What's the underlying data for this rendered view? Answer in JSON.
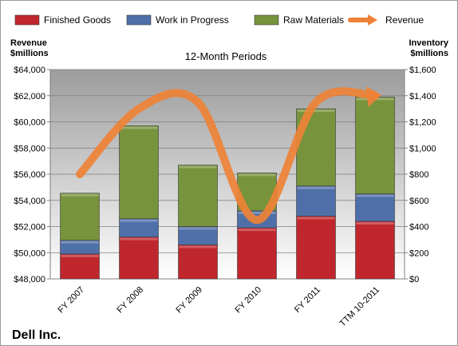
{
  "chart_data": {
    "type": "bar",
    "company": "Dell Inc.",
    "period_label": "12-Month Periods",
    "categories": [
      "FY 2007",
      "FY 2008",
      "FY 2009",
      "FY 2010",
      "FY 2011",
      "TTM 10-2011"
    ],
    "left_axis": {
      "title_line1": "Revenue",
      "title_line2": "$millions",
      "range": [
        48000,
        64000
      ],
      "ticks": [
        "$48,000",
        "$50,000",
        "$52,000",
        "$54,000",
        "$56,000",
        "$58,000",
        "$60,000",
        "$62,000",
        "$64,000"
      ]
    },
    "right_axis": {
      "title_line1": "Inventory",
      "title_line2": "$millions",
      "range": [
        0,
        1600
      ],
      "ticks": [
        "$0",
        "$200",
        "$400",
        "$600",
        "$800",
        "$1,000",
        "$1,200",
        "$1,400",
        "$1,600"
      ]
    },
    "series": [
      {
        "name": "Finished Goods",
        "kind": "stacked-bar",
        "axis": "right",
        "color": "#c0272d",
        "values": [
          190,
          320,
          260,
          390,
          480,
          440
        ]
      },
      {
        "name": "Work in Progress",
        "kind": "stacked-bar",
        "axis": "right",
        "color": "#4f6fa8",
        "values": [
          105,
          140,
          140,
          130,
          230,
          210
        ]
      },
      {
        "name": "Raw Materials",
        "kind": "stacked-bar",
        "axis": "right",
        "color": "#77933c",
        "values": [
          360,
          710,
          470,
          290,
          590,
          740
        ]
      },
      {
        "name": "Revenue",
        "kind": "line",
        "axis": "left",
        "color": "#ee8236",
        "values": [
          56000,
          61000,
          61500,
          52500,
          61500,
          62000
        ]
      }
    ],
    "legend_position": "top",
    "grid": true
  }
}
